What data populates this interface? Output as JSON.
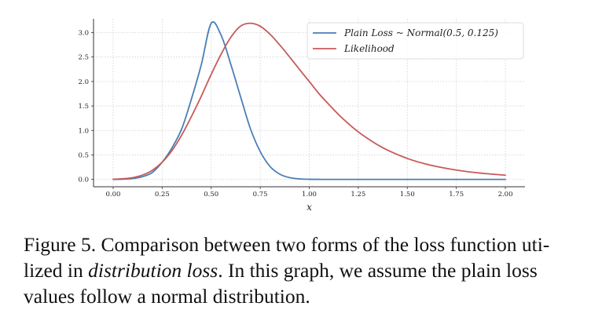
{
  "chart_data": {
    "type": "line",
    "xlabel": "x",
    "ylabel": "",
    "xlim": [
      -0.1,
      2.1
    ],
    "ylim": [
      -0.15,
      3.28
    ],
    "x_ticks": [
      "0.00",
      "0.25",
      "0.50",
      "0.75",
      "1.00",
      "1.25",
      "1.50",
      "1.75",
      "2.00"
    ],
    "y_ticks": [
      "0.0",
      "0.5",
      "1.0",
      "1.5",
      "2.0",
      "2.5",
      "3.0"
    ],
    "grid": true,
    "legend_position": "top-right",
    "series": [
      {
        "name": "Plain Loss ~ Normal(0.5, 0.125)",
        "color": "#4a7fb5",
        "x": [
          0.0,
          0.05,
          0.1,
          0.15,
          0.2,
          0.25,
          0.3,
          0.35,
          0.4,
          0.45,
          0.5,
          0.55,
          0.6,
          0.65,
          0.7,
          0.75,
          0.8,
          0.85,
          0.9,
          0.95,
          1.0,
          1.05,
          1.1,
          1.25,
          1.5,
          1.75,
          2.0
        ],
        "y": [
          0.001,
          0.005,
          0.018,
          0.056,
          0.142,
          0.351,
          0.645,
          1.036,
          1.652,
          2.351,
          3.19,
          2.951,
          2.351,
          1.687,
          1.036,
          0.569,
          0.264,
          0.107,
          0.036,
          0.011,
          0.003,
          0.001,
          0.0,
          0.0,
          0.0,
          0.0,
          0.0
        ]
      },
      {
        "name": "Likelihood",
        "color": "#c75a5a",
        "x": [
          0.0,
          0.05,
          0.1,
          0.15,
          0.2,
          0.25,
          0.3,
          0.35,
          0.4,
          0.45,
          0.5,
          0.55,
          0.6,
          0.65,
          0.7,
          0.75,
          0.8,
          0.85,
          0.9,
          0.95,
          1.0,
          1.05,
          1.1,
          1.15,
          1.2,
          1.25,
          1.3,
          1.35,
          1.4,
          1.5,
          1.6,
          1.7,
          1.8,
          1.9,
          2.0
        ],
        "y": [
          0.003,
          0.013,
          0.037,
          0.089,
          0.187,
          0.35,
          0.589,
          0.909,
          1.291,
          1.704,
          2.146,
          2.554,
          2.903,
          3.132,
          3.19,
          3.129,
          2.965,
          2.744,
          2.5,
          2.247,
          2.0,
          1.749,
          1.531,
          1.323,
          1.138,
          0.971,
          0.83,
          0.704,
          0.597,
          0.428,
          0.308,
          0.224,
          0.162,
          0.118,
          0.087
        ]
      }
    ]
  },
  "caption": {
    "line1": "Figure 5. Comparison between two forms of the loss function uti-",
    "line2_before": "lized in ",
    "line2_emph": "distribution loss",
    "line2_after": ". In this graph, we assume the plain loss",
    "line3": "values follow a normal distribution."
  }
}
